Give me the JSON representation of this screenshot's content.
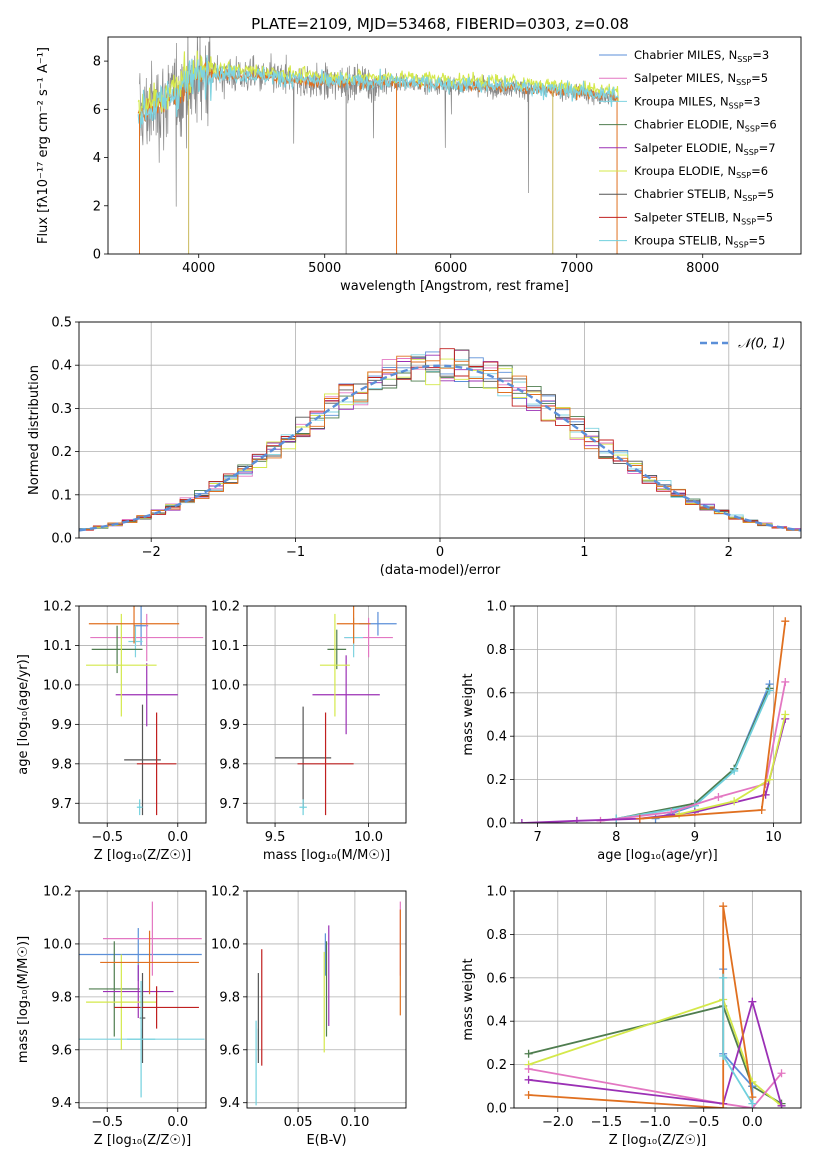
{
  "figure": {
    "title": "PLATE=2109, MJD=53468, FIBERID=0303, z=0.08"
  },
  "colors": {
    "Chabrier MILES": "#5b8fd8",
    "Salpeter MILES": "#e377c2",
    "Kroupa MILES": "#7fd3e0",
    "Chabrier ELODIE": "#4f7d4f",
    "Salpeter ELODIE": "#9b30b5",
    "Kroupa ELODIE": "#d4e84a",
    "Chabrier STELIB": "#555555",
    "Salpeter STELIB": "#c02020",
    "Kroupa STELIB": "#70d0dd",
    "data": "#888888",
    "model_orange": "#e07020",
    "normal": "#5b8fd8"
  },
  "chart_data": [
    {
      "id": "spectrum",
      "type": "line",
      "title": "PLATE=2109, MJD=53468, FIBERID=0303, z=0.08",
      "xlabel": "wavelength [Angstrom, rest frame]",
      "ylabel": "Flux [fλ10⁻¹⁷ erg cm⁻² s⁻¹ A⁻¹]",
      "xlim": [
        3280,
        8780
      ],
      "ylim": [
        0,
        9
      ],
      "xticks": [
        4000,
        5000,
        6000,
        7000,
        8000
      ],
      "yticks": [
        0,
        2,
        4,
        6,
        8
      ],
      "legend_position": "right",
      "legend": [
        {
          "name": "Chabrier MILES",
          "n": "3"
        },
        {
          "name": "Salpeter MILES",
          "n": "5"
        },
        {
          "name": "Kroupa MILES",
          "n": "3"
        },
        {
          "name": "Chabrier ELODIE",
          "n": "6"
        },
        {
          "name": "Salpeter ELODIE",
          "n": "7"
        },
        {
          "name": "Kroupa ELODIE",
          "n": "6"
        },
        {
          "name": "Chabrier STELIB",
          "n": "5"
        },
        {
          "name": "Salpeter STELIB",
          "n": "5"
        },
        {
          "name": "Kroupa STELIB",
          "n": "5"
        }
      ],
      "continuum": {
        "wavelength": [
          3550,
          3700,
          3850,
          3950,
          4050,
          4300,
          4600,
          5000,
          5500,
          6000,
          6500,
          7000,
          7300,
          7600,
          8000,
          8400
        ],
        "flux": [
          5.8,
          6.2,
          6.8,
          7.2,
          7.5,
          7.4,
          7.3,
          7.1,
          7.1,
          7.0,
          6.9,
          6.7,
          6.5,
          6.5,
          6.6,
          6.4
        ]
      }
    },
    {
      "id": "residuals",
      "type": "line",
      "xlabel": "(data-model)/error",
      "ylabel": "Normed distribution",
      "xlim": [
        -2.5,
        2.5
      ],
      "ylim": [
        0,
        0.5
      ],
      "xticks": [
        -2,
        -1,
        0,
        1,
        2
      ],
      "yticks": [
        0.0,
        0.1,
        0.2,
        0.3,
        0.4,
        0.5
      ],
      "legend_label": "𝒩(0, 1)",
      "legend_position": "top-right"
    },
    {
      "id": "age-vs-Z",
      "type": "scatter",
      "xlabel": "Z [log₁₀(Z/Z☉)]",
      "ylabel": "age  [log₁₀(age/yr)]",
      "xlim": [
        -0.7,
        0.2
      ],
      "ylim": [
        9.65,
        10.2
      ],
      "xticks": [
        -0.5,
        0.0
      ],
      "yticks": [
        9.7,
        9.8,
        9.9,
        10.0,
        10.1,
        10.2
      ],
      "points": [
        {
          "model": "Chabrier MILES",
          "x": -0.26,
          "y": 10.15,
          "xerr": 0.05,
          "yerr": 0.05
        },
        {
          "model": "Salpeter MILES",
          "x": -0.22,
          "y": 10.12,
          "xerr": 0.4,
          "yerr": 0.06
        },
        {
          "model": "Kroupa MILES",
          "x": -0.3,
          "y": 10.11,
          "xerr": 0.05,
          "yerr": 0.04
        },
        {
          "model": "Chabrier ELODIE",
          "x": -0.43,
          "y": 10.09,
          "xerr": 0.18,
          "yerr": 0.06
        },
        {
          "model": "Salpeter ELODIE",
          "x": -0.22,
          "y": 9.975,
          "xerr": 0.22,
          "yerr": 0.08
        },
        {
          "model": "Kroupa ELODIE",
          "x": -0.4,
          "y": 10.05,
          "xerr": 0.25,
          "yerr": 0.13
        },
        {
          "model": "Chabrier STELIB",
          "x": -0.25,
          "y": 9.81,
          "xerr": 0.13,
          "yerr": 0.14
        },
        {
          "model": "Salpeter STELIB",
          "x": -0.15,
          "y": 9.8,
          "xerr": 0.14,
          "yerr": 0.13
        },
        {
          "model": "Kroupa STELIB",
          "x": -0.27,
          "y": 9.69,
          "xerr": 0.02,
          "yerr": 0.02
        },
        {
          "model": "orange",
          "x": -0.31,
          "y": 10.155,
          "xerr": 0.32,
          "yerr": 0.05
        }
      ]
    },
    {
      "id": "age-vs-mass",
      "type": "scatter",
      "xlabel": "mass [log₁₀(M/M☉)]",
      "ylabel": "",
      "xlim": [
        9.35,
        10.2
      ],
      "ylim": [
        9.65,
        10.2
      ],
      "xticks": [
        9.5,
        10.0
      ],
      "yticks": [
        9.7,
        9.8,
        9.9,
        10.0,
        10.1,
        10.2
      ],
      "points": [
        {
          "model": "Chabrier MILES",
          "x": 10.05,
          "y": 10.155,
          "xerr": 0.1,
          "yerr": 0.03
        },
        {
          "model": "Salpeter MILES",
          "x": 10.0,
          "y": 10.12,
          "xerr": 0.13,
          "yerr": 0.05
        },
        {
          "model": "Kroupa MILES",
          "x": 9.92,
          "y": 10.12,
          "xerr": 0.05,
          "yerr": 0.05
        },
        {
          "model": "Chabrier ELODIE",
          "x": 9.83,
          "y": 10.09,
          "xerr": 0.05,
          "yerr": 0.05
        },
        {
          "model": "Salpeter ELODIE",
          "x": 9.88,
          "y": 9.975,
          "xerr": 0.18,
          "yerr": 0.1
        },
        {
          "model": "Kroupa ELODIE",
          "x": 9.82,
          "y": 10.05,
          "xerr": 0.08,
          "yerr": 0.13
        },
        {
          "model": "Chabrier STELIB",
          "x": 9.65,
          "y": 9.815,
          "xerr": 0.15,
          "yerr": 0.13
        },
        {
          "model": "Salpeter STELIB",
          "x": 9.77,
          "y": 9.8,
          "xerr": 0.15,
          "yerr": 0.13
        },
        {
          "model": "Kroupa STELIB",
          "x": 9.65,
          "y": 9.69,
          "xerr": 0.02,
          "yerr": 0.02
        },
        {
          "model": "orange",
          "x": 9.92,
          "y": 10.155,
          "xerr": 0.09,
          "yerr": 0.05
        }
      ]
    },
    {
      "id": "mass-weight-vs-age",
      "type": "line",
      "xlabel": "age  [log₁₀(age/yr)]",
      "ylabel": "mass weight",
      "xlim": [
        6.7,
        10.35
      ],
      "ylim": [
        0,
        1
      ],
      "xticks": [
        7,
        8,
        9,
        10
      ],
      "yticks": [
        0.0,
        0.2,
        0.4,
        0.6,
        0.8,
        1.0
      ],
      "series": [
        {
          "model": "Chabrier MILES",
          "x": [
            8.5,
            9.0,
            9.5,
            9.95
          ],
          "y": [
            0.02,
            0.08,
            0.25,
            0.64
          ]
        },
        {
          "model": "Chabrier ELODIE",
          "x": [
            8.0,
            9.0,
            9.5,
            9.95
          ],
          "y": [
            0.02,
            0.09,
            0.25,
            0.62
          ]
        },
        {
          "model": "Kroupa STELIB",
          "x": [
            8.0,
            9.0,
            9.5,
            9.95
          ],
          "y": [
            0.02,
            0.08,
            0.24,
            0.61
          ]
        },
        {
          "model": "Salpeter MILES",
          "x": [
            7.8,
            8.7,
            9.3,
            9.9,
            10.15
          ],
          "y": [
            0.01,
            0.05,
            0.12,
            0.18,
            0.65
          ]
        },
        {
          "model": "Salpeter ELODIE",
          "x": [
            6.8,
            7.5,
            8.3,
            9.0,
            9.9,
            10.15
          ],
          "y": [
            0.0,
            0.01,
            0.02,
            0.05,
            0.13,
            0.48
          ]
        },
        {
          "model": "Kroupa ELODIE",
          "x": [
            8.8,
            9.5,
            9.95,
            10.15
          ],
          "y": [
            0.04,
            0.1,
            0.2,
            0.5
          ]
        },
        {
          "model": "orange",
          "x": [
            8.3,
            9.85,
            10.15
          ],
          "y": [
            0.02,
            0.06,
            0.93
          ]
        }
      ]
    },
    {
      "id": "mass-vs-Z",
      "type": "scatter",
      "xlabel": "Z [log₁₀(Z/Z☉)]",
      "ylabel": "mass [log₁₀(M/M☉)]",
      "xlim": [
        -0.7,
        0.2
      ],
      "ylim": [
        9.38,
        10.2
      ],
      "xticks": [
        -0.5,
        0.0
      ],
      "yticks": [
        9.4,
        9.6,
        9.8,
        10.0,
        10.2
      ],
      "points": [
        {
          "model": "Chabrier MILES",
          "x": -0.28,
          "y": 9.96,
          "xerr": 0.45,
          "yerr": 0.1
        },
        {
          "model": "Salpeter MILES",
          "x": -0.18,
          "y": 10.02,
          "xerr": 0.35,
          "yerr": 0.14
        },
        {
          "model": "Kroupa MILES",
          "x": -0.26,
          "y": 9.64,
          "xerr": 0.45,
          "yerr": 0.04
        },
        {
          "model": "Chabrier ELODIE",
          "x": -0.45,
          "y": 9.83,
          "xerr": 0.18,
          "yerr": 0.18
        },
        {
          "model": "Salpeter ELODIE",
          "x": -0.28,
          "y": 9.82,
          "xerr": 0.25,
          "yerr": 0.1
        },
        {
          "model": "Kroupa ELODIE",
          "x": -0.4,
          "y": 9.78,
          "xerr": 0.25,
          "yerr": 0.18
        },
        {
          "model": "Chabrier STELIB",
          "x": -0.25,
          "y": 9.72,
          "xerr": 0.02,
          "yerr": 0.17
        },
        {
          "model": "Salpeter STELIB",
          "x": -0.15,
          "y": 9.76,
          "xerr": 0.3,
          "yerr": 0.08
        },
        {
          "model": "Kroupa STELIB",
          "x": -0.26,
          "y": 9.64,
          "xerr": 0.1,
          "yerr": 0.22
        },
        {
          "model": "orange",
          "x": -0.2,
          "y": 9.93,
          "xerr": 0.35,
          "yerr": 0.12
        }
      ]
    },
    {
      "id": "mass-vs-ebv",
      "type": "scatter",
      "xlabel": "E(B-V)",
      "ylabel": "",
      "xlim": [
        0.005,
        0.145
      ],
      "ylim": [
        9.38,
        10.2
      ],
      "xticks": [
        0.05,
        0.1
      ],
      "yticks": [
        9.4,
        9.6,
        9.8,
        10.0,
        10.2
      ],
      "points": [
        {
          "model": "Chabrier MILES",
          "x": 0.074,
          "y": 9.96,
          "yerr": 0.08
        },
        {
          "model": "Salpeter MILES",
          "x": 0.14,
          "y": 10.02,
          "yerr": 0.14
        },
        {
          "model": "Kroupa MILES",
          "x": 0.015,
          "y": 9.64,
          "yerr": 0.04
        },
        {
          "model": "Chabrier ELODIE",
          "x": 0.075,
          "y": 9.83,
          "yerr": 0.18
        },
        {
          "model": "Salpeter ELODIE",
          "x": 0.077,
          "y": 9.88,
          "yerr": 0.19
        },
        {
          "model": "Kroupa ELODIE",
          "x": 0.073,
          "y": 9.78,
          "yerr": 0.19
        },
        {
          "model": "Chabrier STELIB",
          "x": 0.015,
          "y": 9.72,
          "yerr": 0.17
        },
        {
          "model": "Salpeter STELIB",
          "x": 0.018,
          "y": 9.76,
          "yerr": 0.22
        },
        {
          "model": "Kroupa STELIB",
          "x": 0.013,
          "y": 9.55,
          "yerr": 0.16
        },
        {
          "model": "orange",
          "x": 0.14,
          "y": 9.93,
          "yerr": 0.2
        }
      ]
    },
    {
      "id": "mass-weight-vs-Z",
      "type": "line",
      "xlabel": "Z [log₁₀(Z/Z☉)]",
      "ylabel": "mass weight",
      "xlim": [
        -2.45,
        0.5
      ],
      "ylim": [
        0,
        1
      ],
      "xticks": [
        -2.0,
        -1.5,
        -1.0,
        -0.5,
        0.0
      ],
      "yticks": [
        0.0,
        0.2,
        0.4,
        0.6,
        0.8,
        1.0
      ],
      "series": [
        {
          "model": "Chabrier ELODIE",
          "x": [
            -2.3,
            -0.3,
            0.0,
            0.3
          ],
          "y": [
            0.25,
            0.47,
            0.1,
            0.02
          ]
        },
        {
          "model": "Kroupa ELODIE",
          "x": [
            -2.3,
            -0.3,
            0.0,
            0.3
          ],
          "y": [
            0.2,
            0.5,
            0.12,
            0.01
          ]
        },
        {
          "model": "Chabrier MILES",
          "x": [
            -0.3,
            -0.3,
            0.0,
            0.0
          ],
          "y": [
            0.64,
            0.25,
            0.1,
            0.0
          ]
        },
        {
          "model": "Salpeter MILES",
          "x": [
            -2.3,
            -0.3,
            0.0,
            0.3
          ],
          "y": [
            0.18,
            0.02,
            0.0,
            0.16
          ]
        },
        {
          "model": "Salpeter ELODIE",
          "x": [
            -2.3,
            -0.3,
            0.0,
            0.3
          ],
          "y": [
            0.13,
            0.02,
            0.49,
            0.01
          ]
        },
        {
          "model": "orange",
          "x": [
            -2.3,
            -0.3,
            -0.3,
            0.0
          ],
          "y": [
            0.06,
            0.0,
            0.93,
            0.05
          ]
        },
        {
          "model": "Kroupa STELIB",
          "x": [
            -0.3,
            -0.3,
            0.0
          ],
          "y": [
            0.6,
            0.24,
            0.02
          ]
        }
      ]
    }
  ]
}
